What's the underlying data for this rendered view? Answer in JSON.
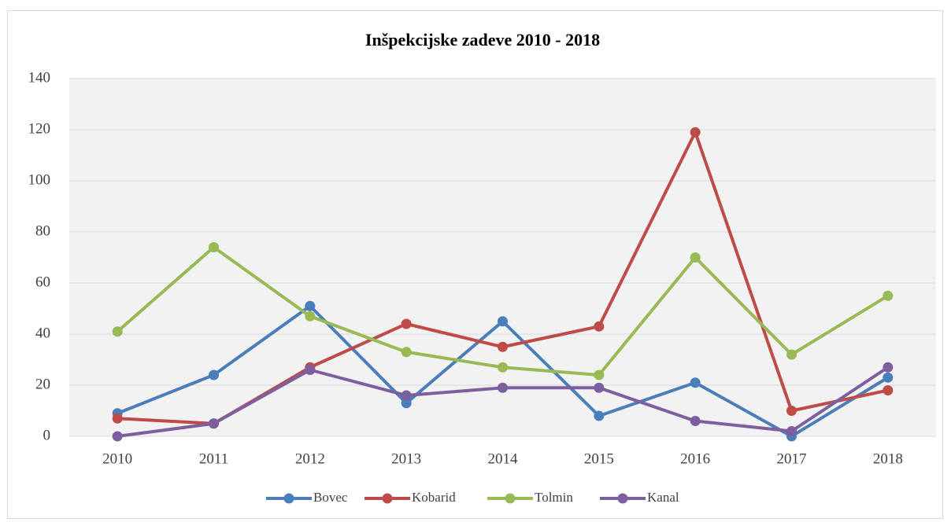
{
  "chart_data": {
    "type": "line",
    "title": "Inšpekcijske zadeve 2010 - 2018",
    "categories": [
      "2010",
      "2011",
      "2012",
      "2013",
      "2014",
      "2015",
      "2016",
      "2017",
      "2018"
    ],
    "series": [
      {
        "name": "Bovec",
        "color": "#4a7ebb",
        "values": [
          9,
          24,
          51,
          13,
          45,
          8,
          21,
          0,
          23
        ]
      },
      {
        "name": "Kobarid",
        "color": "#be4b48",
        "values": [
          7,
          5,
          27,
          44,
          35,
          43,
          119,
          10,
          18
        ]
      },
      {
        "name": "Tolmin",
        "color": "#98b954",
        "values": [
          41,
          74,
          47,
          33,
          27,
          24,
          70,
          32,
          55
        ]
      },
      {
        "name": "Kanal",
        "color": "#7d5fa0",
        "values": [
          0,
          5,
          26,
          16,
          19,
          19,
          6,
          2,
          27
        ]
      }
    ],
    "ylim": [
      0,
      140
    ],
    "yticks": [
      0,
      20,
      40,
      60,
      80,
      100,
      120,
      140
    ],
    "grid": true,
    "legend": "bottom"
  }
}
